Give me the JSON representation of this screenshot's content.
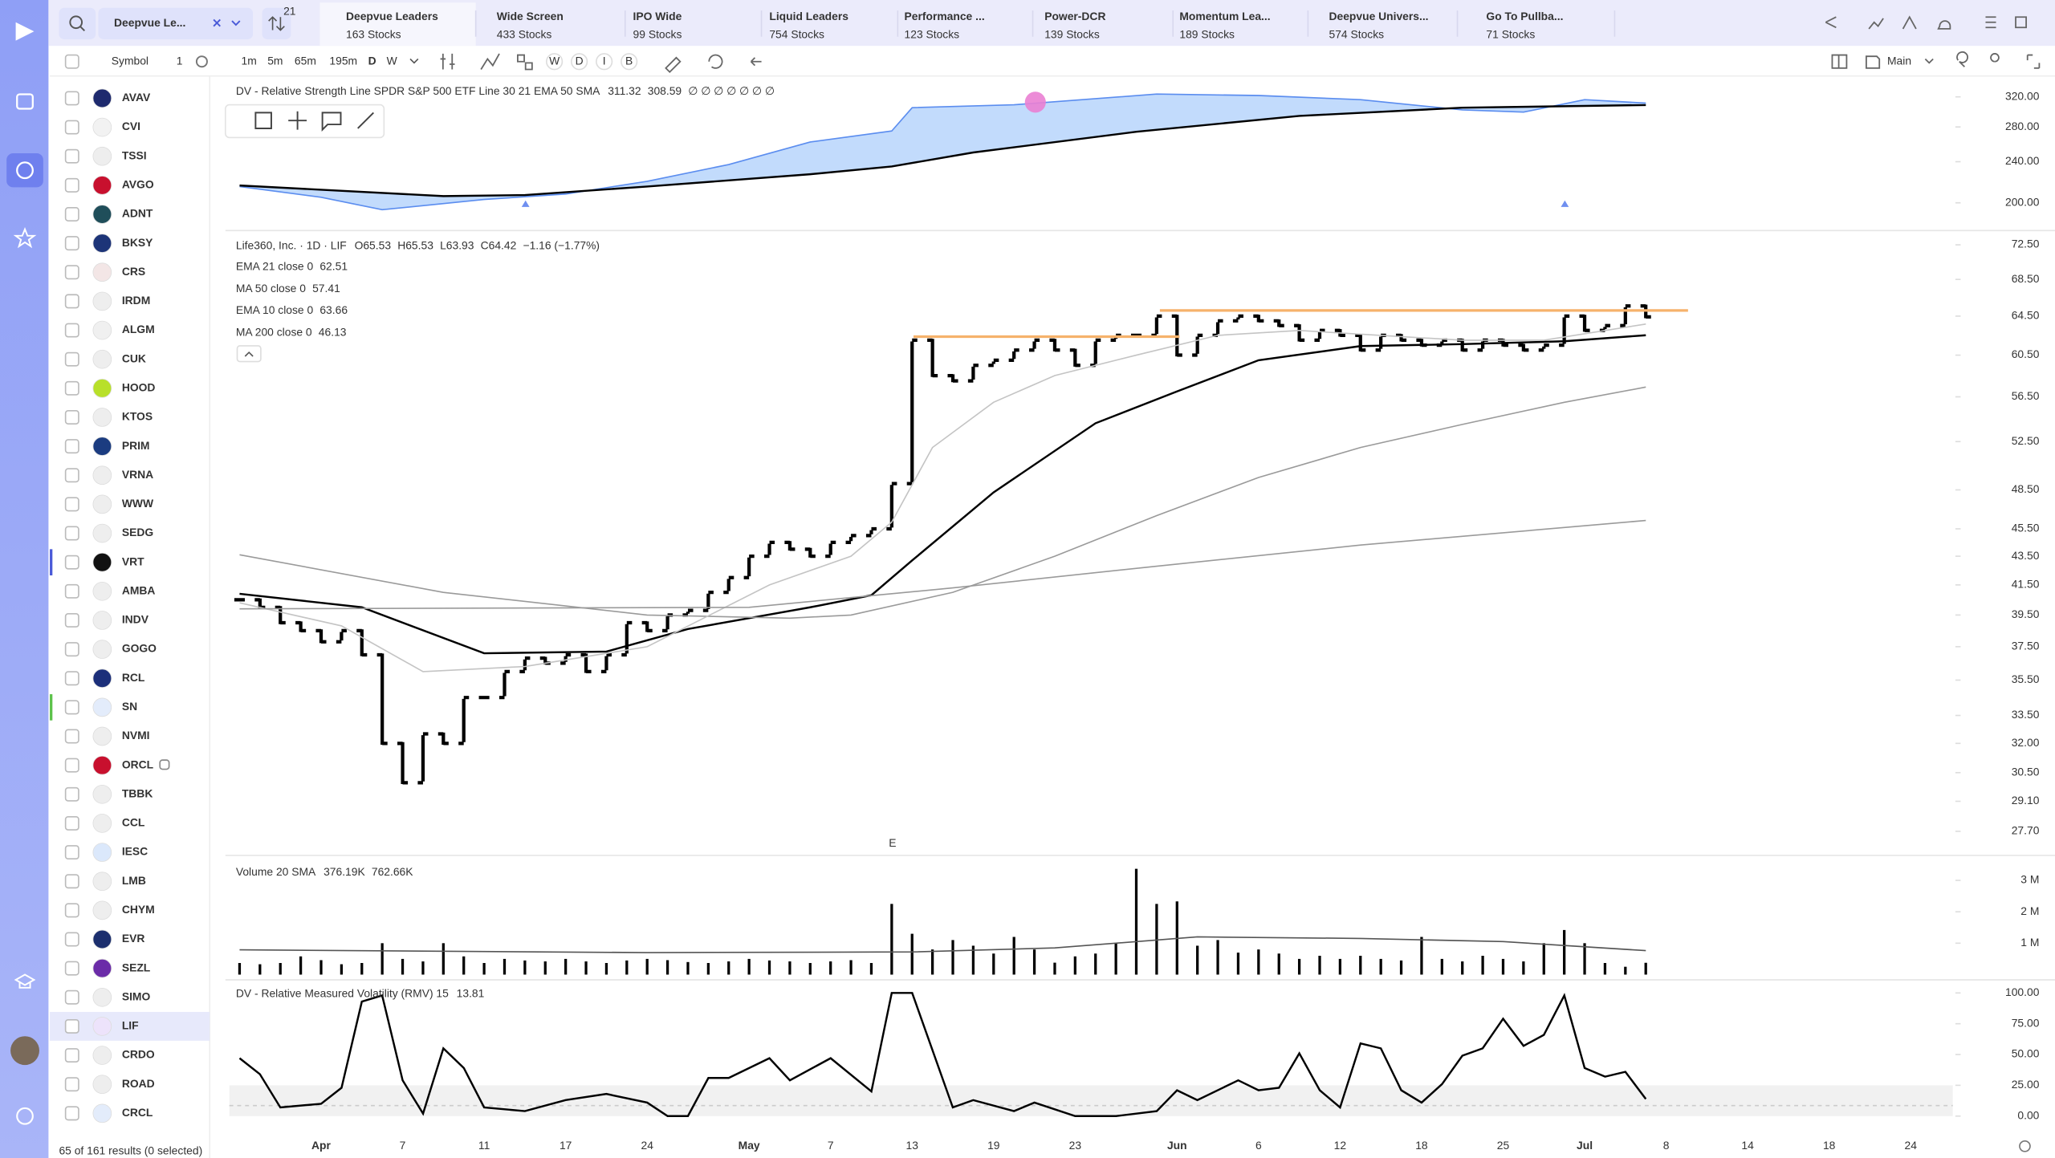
{
  "toolbar": {
    "watchlist": "Deepvue Le...",
    "badge": "21",
    "tabs": [
      {
        "title": "Deepvue Leaders",
        "subtitle": "163 Stocks"
      },
      {
        "title": "Wide Screen",
        "subtitle": "433 Stocks"
      },
      {
        "title": "IPO Wide",
        "subtitle": "99 Stocks"
      },
      {
        "title": "Liquid Leaders",
        "subtitle": "754 Stocks"
      },
      {
        "title": "Performance ...",
        "subtitle": "123 Stocks"
      },
      {
        "title": "Power-DCR",
        "subtitle": "139 Stocks"
      },
      {
        "title": "Momentum Lea...",
        "subtitle": "189 Stocks"
      },
      {
        "title": "Deepvue Univers...",
        "subtitle": "574 Stocks"
      },
      {
        "title": "Go To Pullba...",
        "subtitle": "71 Stocks"
      }
    ]
  },
  "list": {
    "header": "Symbol",
    "header_count": "1",
    "symbols": [
      "AVAV",
      "CVI",
      "TSSI",
      "AVGO",
      "ADNT",
      "BKSY",
      "CRS",
      "IRDM",
      "ALGM",
      "CUK",
      "HOOD",
      "KTOS",
      "PRIM",
      "VRNA",
      "WWW",
      "SEDG",
      "VRT",
      "AMBA",
      "INDV",
      "GOGO",
      "RCL",
      "SN",
      "NVMI",
      "ORCL",
      "TBBK",
      "CCL",
      "IESC",
      "LMB",
      "CHYM",
      "EVR",
      "SEZL",
      "SIMO",
      "LIF",
      "CRDO",
      "ROAD",
      "CRCL"
    ],
    "footer": "65 of 161 results (0 selected)"
  },
  "chart_toolbar": {
    "intervals": [
      "1m",
      "5m",
      "65m",
      "195m",
      "D",
      "W"
    ],
    "styles": [
      "W",
      "D",
      "I",
      "B"
    ],
    "layout": "Main"
  },
  "chart_data": [
    {
      "type": "line",
      "title": "DV - Relative Strength Line SPDR S&P 500 ETF Line 30 21 EMA 50 SMA",
      "readout": [
        "311.32",
        "308.59",
        "∅ ∅ ∅ ∅ ∅ ∅ ∅"
      ],
      "log": true,
      "ylim": [
        181,
        343
      ],
      "yticks": [
        {
          "value": 320,
          "label": "320.00"
        },
        {
          "value": 280,
          "label": "280.00"
        },
        {
          "value": 240,
          "label": "240.00"
        },
        {
          "value": 200,
          "label": "200.00"
        }
      ],
      "series": [
        {
          "type": "line",
          "color": "#5b8def",
          "fill": "#b7d5fb",
          "x": [
            0,
            4,
            7,
            12,
            16,
            20,
            24,
            28,
            32,
            33,
            38,
            45,
            50,
            55,
            60,
            63,
            66,
            69
          ],
          "values": [
            215,
            205,
            194,
            203,
            208,
            220,
            237,
            262,
            275,
            305,
            309,
            324,
            322,
            316,
            302,
            299,
            316,
            311.32
          ]
        },
        {
          "type": "line",
          "color": "#000000",
          "x": [
            0,
            10,
            14,
            20,
            28,
            32,
            36,
            44,
            52,
            60,
            69
          ],
          "values": [
            216,
            206,
            207,
            215,
            227,
            235,
            250,
            274,
            294,
            305,
            308.59
          ]
        }
      ]
    },
    {
      "type": "ohlc",
      "title": "Life360, Inc. · 1D · LIF",
      "readout": [
        "O65.53",
        "H65.53",
        "L63.93",
        "C64.42",
        "−1.16 (−1.77%)"
      ],
      "indicators": [
        {
          "label": "EMA 21 close 0",
          "value": "62.51"
        },
        {
          "label": "MA 50 close 0",
          "value": "57.41"
        },
        {
          "label": "EMA 10 close 0",
          "value": "63.66"
        },
        {
          "label": "MA 200 close 0",
          "value": "46.13"
        }
      ],
      "annotation": "E",
      "log": true,
      "ylim": [
        26.8,
        73.9
      ],
      "yticks": [
        {
          "value": 72.5,
          "label": "72.50"
        },
        {
          "value": 68.5,
          "label": "68.50"
        },
        {
          "value": 64.5,
          "label": "64.50"
        },
        {
          "value": 60.5,
          "label": "60.50"
        },
        {
          "value": 56.5,
          "label": "56.50"
        },
        {
          "value": 52.5,
          "label": "52.50"
        },
        {
          "value": 48.5,
          "label": "48.50"
        },
        {
          "value": 45.5,
          "label": "45.50"
        },
        {
          "value": 43.5,
          "label": "43.50"
        },
        {
          "value": 41.5,
          "label": "41.50"
        },
        {
          "value": 39.5,
          "label": "39.50"
        },
        {
          "value": 37.5,
          "label": "37.50"
        },
        {
          "value": 35.5,
          "label": "35.50"
        },
        {
          "value": 33.5,
          "label": "33.50"
        },
        {
          "value": 32,
          "label": "32.00"
        },
        {
          "value": 30.5,
          "label": "30.50"
        },
        {
          "value": 29.1,
          "label": "29.10"
        },
        {
          "value": 27.7,
          "label": "27.70"
        }
      ],
      "series": [
        {
          "type": "ohlc",
          "color": "#000000",
          "values": [
            40.5,
            40.0,
            39.0,
            38.5,
            37.8,
            38.5,
            37.0,
            32.0,
            30.0,
            32.5,
            32.0,
            34.5,
            34.5,
            36.0,
            36.8,
            36.5,
            37.0,
            36.0,
            37.0,
            39.0,
            38.5,
            39.5,
            39.8,
            41.0,
            42.0,
            43.5,
            44.5,
            44.0,
            43.5,
            44.5,
            45.0,
            45.5,
            49.0,
            62.0,
            58.5,
            58.0,
            59.5,
            60.0,
            61.0,
            62.0,
            61.0,
            59.5,
            62.0,
            62.5,
            62.5,
            64.5,
            60.5,
            62.5,
            64.0,
            64.5,
            64.0,
            63.5,
            62.0,
            63.0,
            62.5,
            61.0,
            62.5,
            62.0,
            61.5,
            62.0,
            61.0,
            62.0,
            61.5,
            61.0,
            61.5,
            64.5,
            63.0,
            63.5,
            65.58,
            64.42,
            null,
            null,
            null,
            null,
            null,
            null,
            null,
            null,
            null,
            null,
            null,
            null,
            null,
            null
          ]
        },
        {
          "type": "line",
          "color": "#000000",
          "x": [
            0,
            6,
            12,
            18,
            22,
            28,
            31,
            33,
            37,
            42,
            46,
            50,
            55,
            60,
            65,
            69
          ],
          "values": [
            40.9,
            40.0,
            37.1,
            37.2,
            38.6,
            40.0,
            40.8,
            43.2,
            48.3,
            54.1,
            57.0,
            60.0,
            61.4,
            61.6,
            61.9,
            62.51
          ]
        },
        {
          "type": "line",
          "color": "#9a9a9a",
          "x": [
            0,
            10,
            20,
            27,
            30,
            35,
            40,
            45,
            50,
            55,
            60,
            65,
            69
          ],
          "values": [
            43.6,
            41.0,
            39.5,
            39.3,
            39.5,
            41.0,
            43.5,
            46.5,
            49.5,
            52.0,
            54.0,
            56.0,
            57.41
          ]
        },
        {
          "type": "line",
          "color": "#c4c4c4",
          "x": [
            0,
            5,
            9,
            14,
            20,
            26,
            30,
            32,
            34,
            37,
            40,
            44,
            48,
            52,
            56,
            60,
            64,
            69
          ],
          "values": [
            40.3,
            38.8,
            36.0,
            36.3,
            37.5,
            41.5,
            43.5,
            46.0,
            52.0,
            56.0,
            58.5,
            60.5,
            62.5,
            63.0,
            62.5,
            62.0,
            62.0,
            63.66
          ]
        },
        {
          "type": "line",
          "color": "#9a9a9a",
          "x": [
            0,
            25,
            35,
            45,
            55,
            65,
            69
          ],
          "values": [
            39.9,
            40.0,
            41.3,
            42.8,
            44.3,
            45.6,
            46.13
          ]
        }
      ]
    },
    {
      "type": "bar",
      "title": "Volume 20 SMA",
      "readout": [
        "376.19K",
        "762.66K"
      ],
      "ylim": [
        0,
        3670000
      ],
      "yticks": [
        {
          "value": 3000000,
          "label": "3 M"
        },
        {
          "value": 2000000,
          "label": "2 M"
        },
        {
          "value": 1000000,
          "label": "1 M"
        }
      ],
      "series": [
        {
          "type": "bar",
          "color": "#000000",
          "values": [
            370000,
            330000,
            370000,
            580000,
            460000,
            330000,
            370000,
            1000000,
            500000,
            420000,
            1000000,
            580000,
            370000,
            500000,
            450000,
            420000,
            500000,
            420000,
            370000,
            450000,
            500000,
            460000,
            400000,
            370000,
            420000,
            500000,
            450000,
            420000,
            370000,
            420000,
            460000,
            370000,
            2250000,
            1300000,
            800000,
            1100000,
            920000,
            670000,
            1200000,
            800000,
            380000,
            580000,
            670000,
            1000000,
            3370000,
            2250000,
            2330000,
            920000,
            1100000,
            700000,
            800000,
            670000,
            500000,
            600000,
            500000,
            600000,
            500000,
            450000,
            1200000,
            500000,
            420000,
            600000,
            500000,
            420000,
            1000000,
            1420000,
            1000000,
            370000,
            250000,
            376190,
            null,
            null,
            null,
            null,
            null,
            null,
            null,
            null,
            null,
            null,
            null,
            null,
            null,
            null
          ]
        },
        {
          "type": "line",
          "color": "#555555",
          "x": [
            0,
            20,
            33,
            40,
            47,
            55,
            62,
            69
          ],
          "values": [
            790000,
            700000,
            720000,
            850000,
            1200000,
            1150000,
            1050000,
            762660
          ]
        }
      ]
    },
    {
      "type": "line",
      "title": "DV - Relative Measured Volatility (RMV) 15",
      "readout": [
        "13.81"
      ],
      "ylim": [
        0,
        100
      ],
      "yticks": [
        {
          "value": 100,
          "label": "100.00"
        },
        {
          "value": 75,
          "label": "75.00"
        },
        {
          "value": 50,
          "label": "50.00"
        },
        {
          "value": 25,
          "label": "25.00"
        },
        {
          "value": 0,
          "label": "0.00"
        }
      ],
      "band": [
        0,
        25
      ],
      "categories": [
        null,
        null,
        null,
        null,
        "Apr",
        null,
        null,
        null,
        "7",
        null,
        null,
        null,
        "11",
        null,
        null,
        null,
        "17",
        null,
        null,
        null,
        "24",
        null,
        null,
        null,
        null,
        "May",
        null,
        null,
        null,
        "7",
        null,
        null,
        null,
        "13",
        null,
        null,
        null,
        "19",
        null,
        null,
        null,
        "23",
        null,
        null,
        null,
        null,
        "Jun",
        null,
        null,
        null,
        "6",
        null,
        null,
        null,
        "12",
        null,
        null,
        null,
        "18",
        null,
        null,
        null,
        "25",
        null,
        null,
        null,
        "Jul",
        null,
        null,
        null,
        "8",
        null,
        null,
        null,
        "14",
        null,
        null,
        null,
        "18",
        null,
        null,
        null,
        "24",
        null
      ],
      "series": [
        {
          "type": "line",
          "color": "#000000",
          "x": [
            0,
            1,
            2,
            4,
            5,
            6,
            7,
            8,
            9,
            10,
            11,
            12,
            14,
            16,
            18,
            20,
            21,
            22,
            23,
            24,
            26,
            27,
            29,
            31,
            32,
            33,
            35,
            36,
            38,
            39,
            41,
            43,
            45,
            46,
            47,
            49,
            50,
            51,
            52,
            53,
            54,
            55,
            56,
            57,
            58,
            59,
            60,
            61,
            62,
            63,
            64,
            65,
            66,
            67,
            68,
            69
          ],
          "values": [
            47,
            34,
            7,
            10,
            23,
            93,
            98,
            29,
            2,
            55,
            39,
            7,
            4,
            13,
            18,
            11,
            0,
            0,
            31,
            31,
            47,
            29,
            47,
            20,
            100,
            100,
            7,
            13,
            4,
            11,
            0,
            0,
            4,
            21,
            13,
            29,
            21,
            23,
            51,
            21,
            7,
            59,
            55,
            21,
            11,
            26,
            49,
            55,
            79,
            57,
            66,
            98,
            39,
            32,
            36,
            13.81
          ]
        }
      ]
    }
  ]
}
